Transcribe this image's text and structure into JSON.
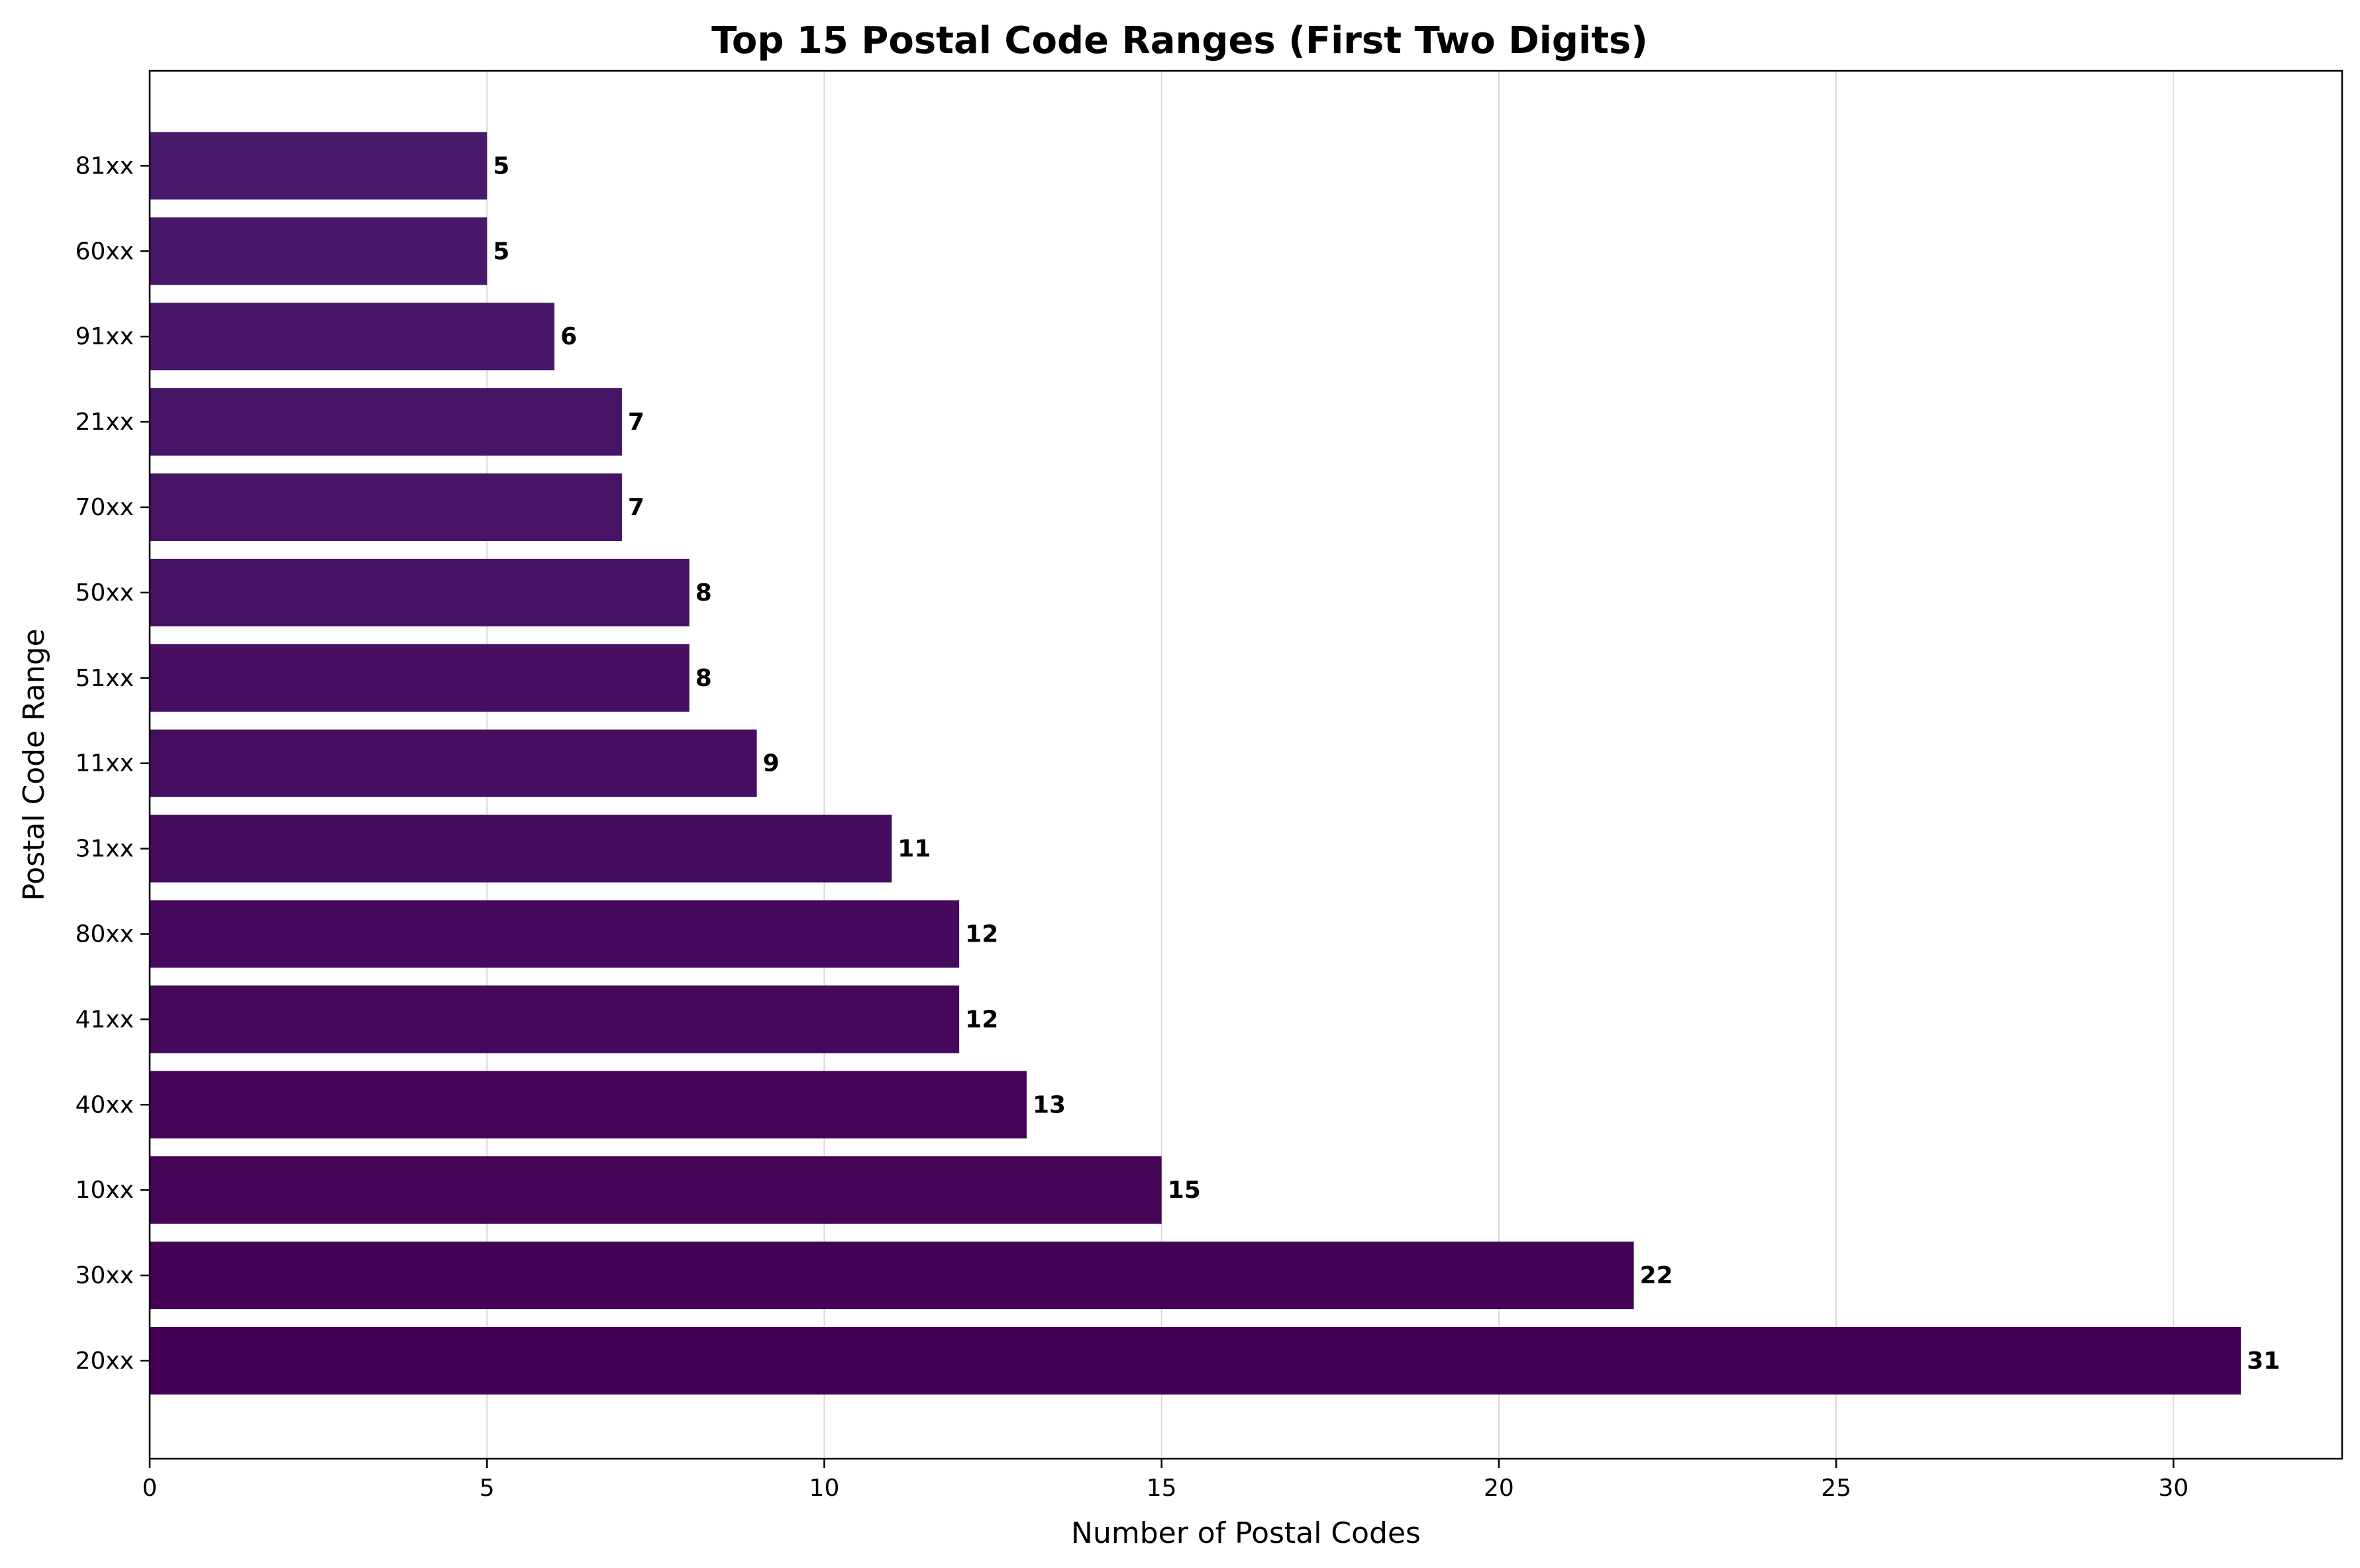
{
  "chart_data": {
    "type": "bar",
    "orientation": "horizontal",
    "title": "Top 15 Postal Code Ranges (First Two Digits)",
    "xlabel": "Number of Postal Codes",
    "ylabel": "Postal Code Range",
    "categories": [
      "20xx",
      "30xx",
      "10xx",
      "40xx",
      "41xx",
      "80xx",
      "31xx",
      "11xx",
      "51xx",
      "50xx",
      "70xx",
      "21xx",
      "91xx",
      "60xx",
      "81xx"
    ],
    "values": [
      31,
      22,
      15,
      13,
      12,
      12,
      11,
      9,
      8,
      8,
      7,
      7,
      6,
      5,
      5
    ],
    "value_labels": [
      "31",
      "22",
      "15",
      "13",
      "12",
      "12",
      "11",
      "9",
      "8",
      "8",
      "7",
      "7",
      "6",
      "5",
      "5"
    ],
    "xlim": [
      0,
      32.5
    ],
    "xticks": [
      0,
      5,
      10,
      15,
      20,
      25,
      30
    ],
    "xtick_labels": [
      "0",
      "5",
      "10",
      "15",
      "20",
      "25",
      "30"
    ],
    "grid": "vertical lines",
    "colors": {
      "bar_dark": "#440154",
      "bar_light": "#481a6c",
      "grid": "#d9d9d9",
      "axis": "#000000"
    }
  }
}
